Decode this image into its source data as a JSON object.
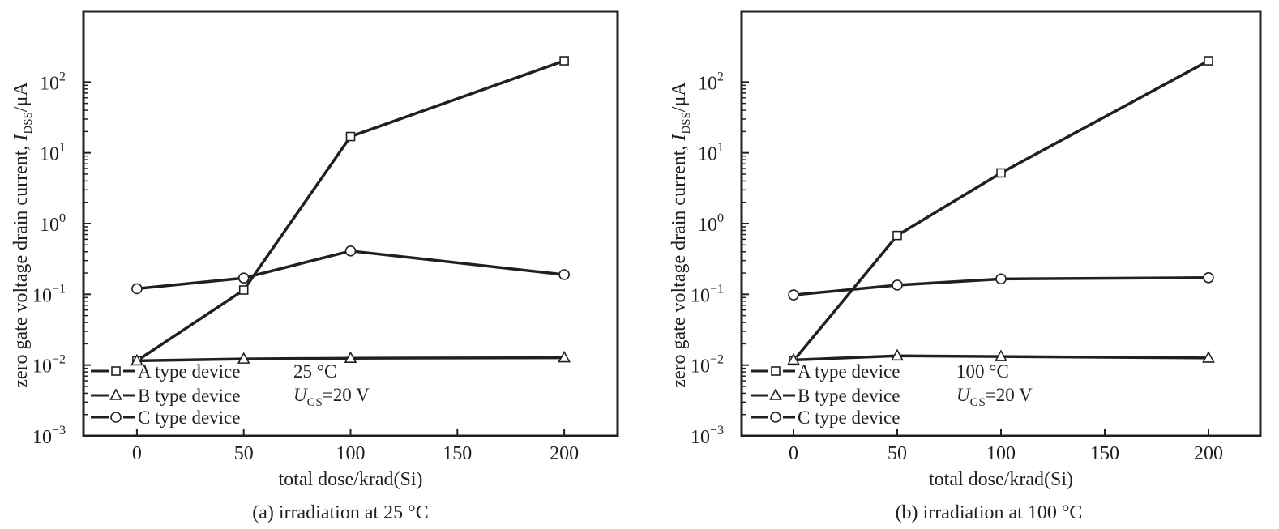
{
  "colors": {
    "ink": "#231f20",
    "background": "#ffffff"
  },
  "legend": {
    "a": "A type device",
    "b": "B type device",
    "c": "C type device"
  },
  "chart_data": [
    {
      "type": "line",
      "caption": "(a) irradiation at 25 °C",
      "xlabel": "total dose/krad(Si)",
      "ylabel": {
        "prefix": "zero gate voltage drain current, ",
        "symbol": "I",
        "subscript": "DSS",
        "unit": "/μA"
      },
      "x_ticks": [
        0,
        50,
        100,
        150,
        200
      ],
      "xlim": [
        -25,
        225
      ],
      "y_scale": "log",
      "ylim": [
        0.001,
        1000
      ],
      "y_ticks": [
        {
          "base": "10",
          "exp": "−3"
        },
        {
          "base": "10",
          "exp": "−2"
        },
        {
          "base": "10",
          "exp": "−1"
        },
        {
          "base": "10",
          "exp": "0"
        },
        {
          "base": "10",
          "exp": "1"
        },
        {
          "base": "10",
          "exp": "2"
        }
      ],
      "conditions": {
        "temperature": "25 °C",
        "voltage_symbol": "U",
        "voltage_subscript": "GS",
        "voltage_value": "=20 V"
      },
      "legend_position": "bottom-left",
      "grid": false,
      "x": [
        0,
        50,
        100,
        200
      ],
      "series": [
        {
          "key": "a",
          "name": "A type device",
          "marker": "square",
          "values": [
            0.0115,
            0.115,
            17,
            200
          ]
        },
        {
          "key": "b",
          "name": "B type device",
          "marker": "triangle",
          "values": [
            0.0115,
            0.0122,
            0.0125,
            0.0127
          ]
        },
        {
          "key": "c",
          "name": "C type device",
          "marker": "circle",
          "values": [
            0.12,
            0.17,
            0.41,
            0.19
          ]
        }
      ]
    },
    {
      "type": "line",
      "caption": "(b) irradiation at 100 °C",
      "xlabel": "total dose/krad(Si)",
      "ylabel": {
        "prefix": "zero gate voltage drain current, ",
        "symbol": "I",
        "subscript": "DSS",
        "unit": "/μA"
      },
      "x_ticks": [
        0,
        50,
        100,
        150,
        200
      ],
      "xlim": [
        -25,
        225
      ],
      "y_scale": "log",
      "ylim": [
        0.001,
        1000
      ],
      "y_ticks": [
        {
          "base": "10",
          "exp": "−3"
        },
        {
          "base": "10",
          "exp": "−2"
        },
        {
          "base": "10",
          "exp": "−1"
        },
        {
          "base": "10",
          "exp": "0"
        },
        {
          "base": "10",
          "exp": "1"
        },
        {
          "base": "10",
          "exp": "2"
        }
      ],
      "conditions": {
        "temperature": "100 °C",
        "voltage_symbol": "U",
        "voltage_subscript": "GS",
        "voltage_value": "=20 V"
      },
      "legend_position": "bottom-left",
      "grid": false,
      "x": [
        0,
        50,
        100,
        200
      ],
      "series": [
        {
          "key": "a",
          "name": "A type device",
          "marker": "square",
          "values": [
            0.0115,
            0.68,
            5.2,
            200
          ]
        },
        {
          "key": "b",
          "name": "B type device",
          "marker": "triangle",
          "values": [
            0.0118,
            0.0135,
            0.0132,
            0.0126
          ]
        },
        {
          "key": "c",
          "name": "C type device",
          "marker": "circle",
          "values": [
            0.098,
            0.135,
            0.165,
            0.172
          ]
        }
      ]
    }
  ]
}
